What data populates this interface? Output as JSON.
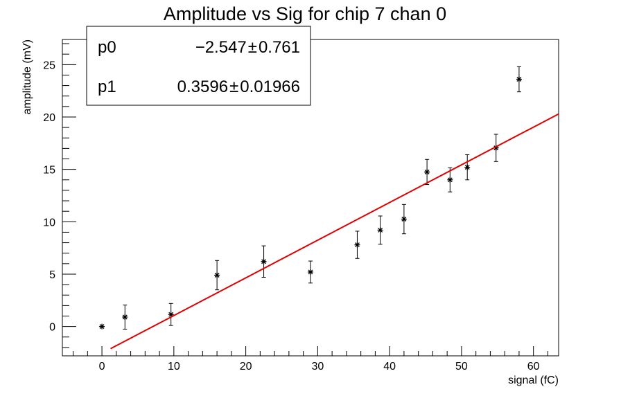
{
  "chart_data": {
    "type": "scatter",
    "title": "Amplitude vs Sig for chip 7 chan 0",
    "xlabel": "signal (fC)",
    "ylabel": "amplitude (mV)",
    "xlim": [
      -5.5,
      63.5
    ],
    "ylim": [
      -2.8,
      27.4
    ],
    "x_ticks": [
      0,
      10,
      20,
      30,
      40,
      50,
      60
    ],
    "y_ticks": [
      0,
      5,
      10,
      15,
      20,
      25
    ],
    "grid": false,
    "series": [
      {
        "marker": "asterisk",
        "color": "#000000",
        "points": [
          {
            "x": 0.0,
            "y": 0.0,
            "err": 0.0
          },
          {
            "x": 3.2,
            "y": 0.9,
            "err": 1.15
          },
          {
            "x": 9.6,
            "y": 1.15,
            "err": 1.05
          },
          {
            "x": 16.0,
            "y": 4.9,
            "err": 1.4
          },
          {
            "x": 22.5,
            "y": 6.2,
            "err": 1.5
          },
          {
            "x": 29.0,
            "y": 5.2,
            "err": 1.05
          },
          {
            "x": 35.5,
            "y": 7.8,
            "err": 1.3
          },
          {
            "x": 38.7,
            "y": 9.2,
            "err": 1.35
          },
          {
            "x": 42.0,
            "y": 10.25,
            "err": 1.4
          },
          {
            "x": 45.2,
            "y": 14.75,
            "err": 1.2
          },
          {
            "x": 48.4,
            "y": 14.0,
            "err": 1.15
          },
          {
            "x": 50.8,
            "y": 15.2,
            "err": 1.2
          },
          {
            "x": 54.8,
            "y": 17.05,
            "err": 1.3
          },
          {
            "x": 58.0,
            "y": 23.6,
            "err": 1.2
          }
        ]
      }
    ],
    "fit": {
      "color": "#e00000",
      "x_range": [
        1.2,
        63.5
      ],
      "p0": -2.547,
      "p1": 0.3596
    },
    "stats_box": {
      "placement": "top-left",
      "rows": [
        {
          "name": "p0",
          "value": "−2.547",
          "pm": "±",
          "error": "0.761"
        },
        {
          "name": "p1",
          "value": "0.3596",
          "pm": "±",
          "error": "0.01966"
        }
      ]
    }
  }
}
